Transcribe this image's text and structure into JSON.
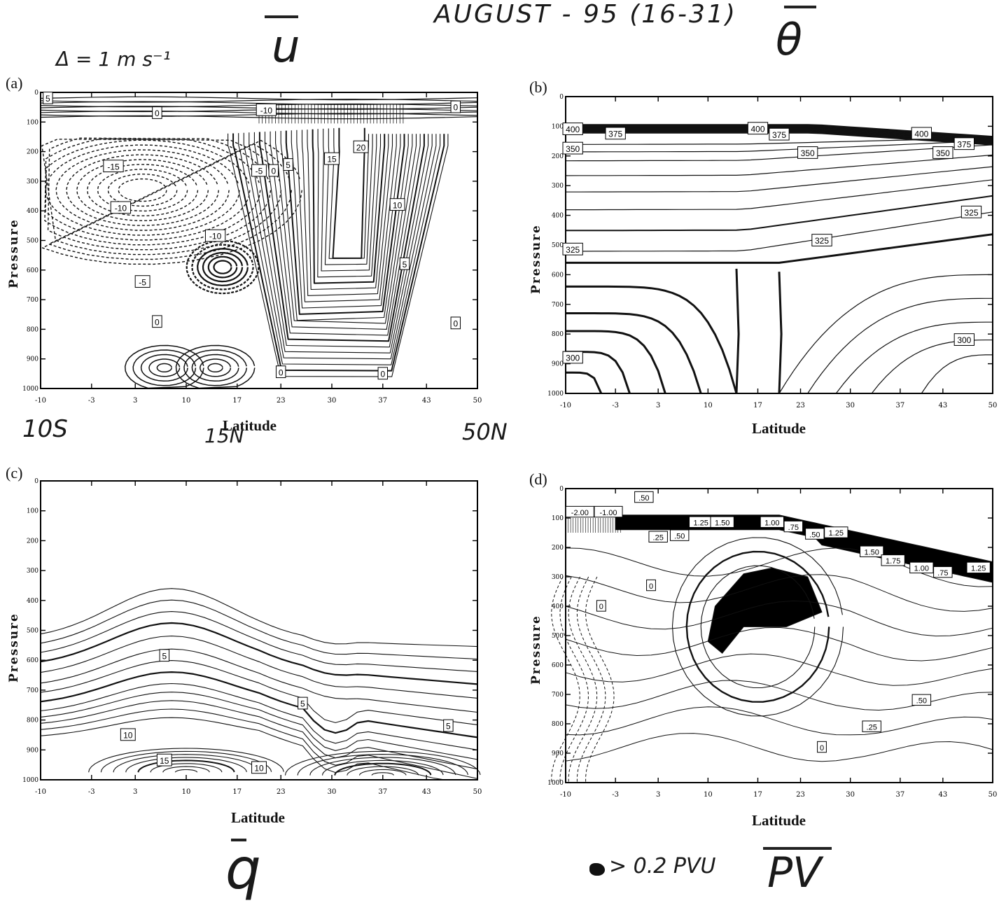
{
  "annotations": {
    "top_title": "AUGUST - 95 (16-31)",
    "u_symbol": "u",
    "theta_symbol": "θ",
    "delta_note": "Δ = 1 m s⁻¹",
    "lat_10s": "10S",
    "lat_15n": "15N",
    "lat_50n": "50N",
    "q_symbol": "q",
    "pv_symbol": "PV",
    "pv_note": "> 0.2 PVU"
  },
  "chart_data": [
    {
      "panel": "(a)",
      "type": "contour",
      "variable": "zonal wind u",
      "xlabel": "Latitude",
      "ylabel": "Pressure",
      "xticks": [
        "-10",
        "-3",
        "3",
        "10",
        "17",
        "23",
        "30",
        "37",
        "43",
        "50"
      ],
      "yticks": [
        "0",
        "100",
        "200",
        "300",
        "400",
        "500",
        "600",
        "700",
        "800",
        "900",
        "1000"
      ],
      "xlim": [
        -10,
        50
      ],
      "ylim": [
        1000,
        0
      ],
      "y_inverted": true,
      "contour_interval": "1 m s-1",
      "dashed_negative": true,
      "labels": [
        {
          "text": "5",
          "x": -9,
          "y": 20
        },
        {
          "text": "0",
          "x": 6,
          "y": 70
        },
        {
          "text": "-10",
          "x": 21,
          "y": 60
        },
        {
          "text": "0",
          "x": 47,
          "y": 50
        },
        {
          "text": "20",
          "x": 34,
          "y": 185
        },
        {
          "text": "-15",
          "x": 0,
          "y": 250
        },
        {
          "text": "15",
          "x": 30,
          "y": 225
        },
        {
          "text": "-5",
          "x": 20,
          "y": 265
        },
        {
          "text": "0",
          "x": 22,
          "y": 265
        },
        {
          "text": "5",
          "x": 24,
          "y": 245
        },
        {
          "text": "-10",
          "x": 1,
          "y": 390
        },
        {
          "text": "10",
          "x": 39,
          "y": 380
        },
        {
          "text": "-10",
          "x": 14,
          "y": 485
        },
        {
          "text": "5",
          "x": 40,
          "y": 580
        },
        {
          "text": "-5",
          "x": 4,
          "y": 640
        },
        {
          "text": "0",
          "x": 6,
          "y": 775
        },
        {
          "text": "0",
          "x": 47,
          "y": 780
        },
        {
          "text": "0",
          "x": 23,
          "y": 945
        },
        {
          "text": "0",
          "x": 37,
          "y": 950
        }
      ]
    },
    {
      "panel": "(b)",
      "type": "contour",
      "variable": "potential temperature θ",
      "xlabel": "Latitude",
      "ylabel": "Pressure",
      "xticks": [
        "-10",
        "-3",
        "3",
        "10",
        "17",
        "23",
        "30",
        "37",
        "43",
        "50"
      ],
      "yticks": [
        "0",
        "100",
        "200",
        "300",
        "400",
        "500",
        "600",
        "700",
        "800",
        "900",
        "1000"
      ],
      "xlim": [
        -10,
        50
      ],
      "ylim": [
        1000,
        0
      ],
      "y_inverted": true,
      "labels": [
        {
          "text": "400",
          "x": -9,
          "y": 110
        },
        {
          "text": "375",
          "x": -3,
          "y": 125
        },
        {
          "text": "400",
          "x": 17,
          "y": 108
        },
        {
          "text": "375",
          "x": 20,
          "y": 128
        },
        {
          "text": "400",
          "x": 40,
          "y": 125
        },
        {
          "text": "375",
          "x": 46,
          "y": 160
        },
        {
          "text": "350",
          "x": -9,
          "y": 175
        },
        {
          "text": "350",
          "x": 24,
          "y": 190
        },
        {
          "text": "350",
          "x": 43,
          "y": 190
        },
        {
          "text": "325",
          "x": 47,
          "y": 390
        },
        {
          "text": "325",
          "x": 26,
          "y": 485
        },
        {
          "text": "325",
          "x": -9,
          "y": 515
        },
        {
          "text": "300",
          "x": -9,
          "y": 880
        },
        {
          "text": "300",
          "x": 46,
          "y": 820
        }
      ]
    },
    {
      "panel": "(c)",
      "type": "contour",
      "variable": "specific humidity q",
      "xlabel": "Latitude",
      "ylabel": "Pressure",
      "xticks": [
        "-10",
        "-3",
        "3",
        "10",
        "17",
        "23",
        "30",
        "37",
        "43",
        "50"
      ],
      "yticks": [
        "0",
        "100",
        "200",
        "300",
        "400",
        "500",
        "600",
        "700",
        "800",
        "900",
        "1000"
      ],
      "xlim": [
        -10,
        50
      ],
      "ylim": [
        1000,
        0
      ],
      "y_inverted": true,
      "labels": [
        {
          "text": "5",
          "x": 7,
          "y": 585
        },
        {
          "text": "5",
          "x": 26,
          "y": 745
        },
        {
          "text": "5",
          "x": 46,
          "y": 820
        },
        {
          "text": "10",
          "x": 2,
          "y": 850
        },
        {
          "text": "15",
          "x": 7,
          "y": 935
        },
        {
          "text": "10",
          "x": 20,
          "y": 960
        }
      ]
    },
    {
      "panel": "(d)",
      "type": "contour",
      "variable": "potential vorticity PV",
      "xlabel": "Latitude",
      "ylabel": "Pressure",
      "xticks": [
        "-10",
        "-3",
        "3",
        "10",
        "17",
        "23",
        "30",
        "37",
        "43",
        "50"
      ],
      "yticks": [
        "0",
        "100",
        "200",
        "300",
        "400",
        "500",
        "600",
        "700",
        "800",
        "900",
        "1000"
      ],
      "xlim": [
        -10,
        50
      ],
      "ylim": [
        1000,
        0
      ],
      "y_inverted": true,
      "labels": [
        {
          "text": "-2.00",
          "x": -8,
          "y": 80
        },
        {
          "text": "-1.00",
          "x": -4,
          "y": 80
        },
        {
          "text": ".50",
          "x": 1,
          "y": 30
        },
        {
          "text": ".25",
          "x": 3,
          "y": 165
        },
        {
          "text": ".50",
          "x": 6,
          "y": 160
        },
        {
          "text": "1.25",
          "x": 9,
          "y": 115
        },
        {
          "text": "1.50",
          "x": 12,
          "y": 115
        },
        {
          "text": "1.00",
          "x": 19,
          "y": 115
        },
        {
          "text": ".75",
          "x": 22,
          "y": 130
        },
        {
          "text": ".50",
          "x": 25,
          "y": 155
        },
        {
          "text": "1.25",
          "x": 28,
          "y": 150
        },
        {
          "text": "1.50",
          "x": 33,
          "y": 215
        },
        {
          "text": "1.75",
          "x": 36,
          "y": 245
        },
        {
          "text": "1.00",
          "x": 40,
          "y": 270
        },
        {
          "text": ".75",
          "x": 43,
          "y": 285
        },
        {
          "text": "1.25",
          "x": 48,
          "y": 270
        },
        {
          "text": "0",
          "x": 2,
          "y": 330
        },
        {
          "text": "0",
          "x": -5,
          "y": 400
        },
        {
          "text": ".50",
          "x": 40,
          "y": 720
        },
        {
          "text": ".25",
          "x": 33,
          "y": 810
        },
        {
          "text": "0",
          "x": 26,
          "y": 880
        }
      ]
    }
  ]
}
